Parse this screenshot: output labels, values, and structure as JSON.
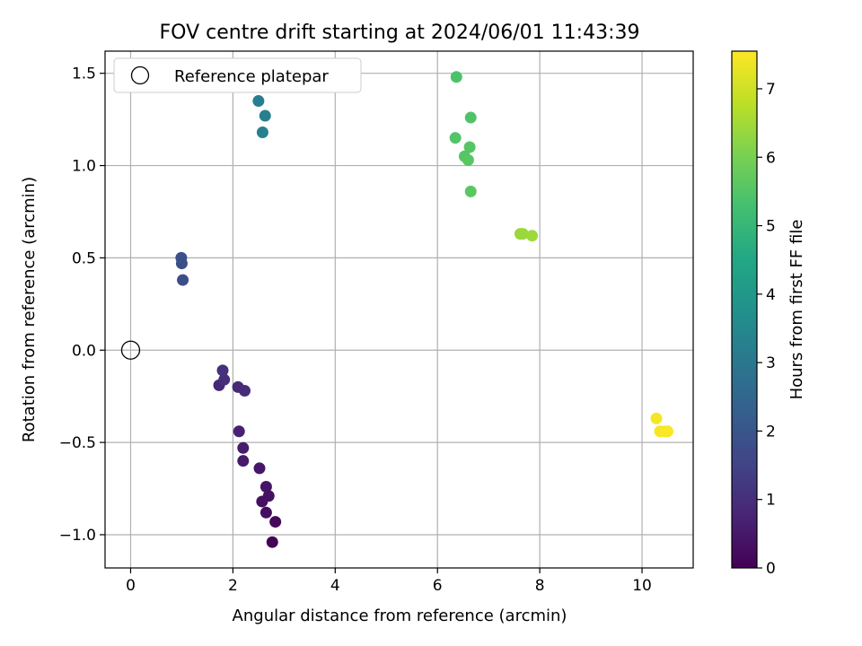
{
  "chart_data": {
    "type": "scatter",
    "title": "FOV centre drift starting at 2024/06/01 11:43:39",
    "xlabel": "Angular distance from reference (arcmin)",
    "ylabel": "Rotation from reference (arcmin)",
    "xlim": [
      -0.5,
      11.0
    ],
    "ylim": [
      -1.18,
      1.62
    ],
    "xticks": [
      0,
      2,
      4,
      6,
      8,
      10
    ],
    "xtick_labels": [
      "0",
      "2",
      "4",
      "6",
      "8",
      "10"
    ],
    "yticks": [
      -1.0,
      -0.5,
      0.0,
      0.5,
      1.0,
      1.5
    ],
    "ytick_labels": [
      "−1.0",
      "−0.5",
      "0.0",
      "0.5",
      "1.0",
      "1.5"
    ],
    "grid": true,
    "legend": {
      "placement": "top-left",
      "entries": [
        "Reference platepar"
      ]
    },
    "reference_point": {
      "x": 0.0,
      "y": 0.0
    },
    "colorbar": {
      "label": "Hours from first FF file",
      "range": [
        0.0,
        7.55
      ],
      "ticks": [
        0,
        1,
        2,
        3,
        4,
        5,
        6,
        7
      ],
      "tick_labels": [
        "0",
        "1",
        "2",
        "3",
        "4",
        "5",
        "6",
        "7"
      ],
      "colormap": "viridis"
    },
    "points": [
      {
        "x": 2.77,
        "y": -1.04,
        "hours": 0.05
      },
      {
        "x": 2.83,
        "y": -0.93,
        "hours": 0.15
      },
      {
        "x": 2.65,
        "y": -0.88,
        "hours": 0.25
      },
      {
        "x": 2.57,
        "y": -0.82,
        "hours": 0.3
      },
      {
        "x": 2.7,
        "y": -0.79,
        "hours": 0.35
      },
      {
        "x": 2.65,
        "y": -0.74,
        "hours": 0.4
      },
      {
        "x": 2.52,
        "y": -0.64,
        "hours": 0.45
      },
      {
        "x": 2.2,
        "y": -0.6,
        "hours": 0.55
      },
      {
        "x": 2.2,
        "y": -0.53,
        "hours": 0.6
      },
      {
        "x": 2.12,
        "y": -0.44,
        "hours": 0.7
      },
      {
        "x": 1.73,
        "y": -0.19,
        "hours": 0.85
      },
      {
        "x": 2.1,
        "y": -0.2,
        "hours": 0.9
      },
      {
        "x": 2.23,
        "y": -0.22,
        "hours": 0.95
      },
      {
        "x": 1.83,
        "y": -0.16,
        "hours": 1.0
      },
      {
        "x": 1.8,
        "y": -0.11,
        "hours": 1.05
      },
      {
        "x": 1.02,
        "y": 0.38,
        "hours": 1.75
      },
      {
        "x": 1.0,
        "y": 0.47,
        "hours": 1.8
      },
      {
        "x": 0.99,
        "y": 0.5,
        "hours": 1.85
      },
      {
        "x": 2.58,
        "y": 1.18,
        "hours": 3.3
      },
      {
        "x": 2.63,
        "y": 1.27,
        "hours": 3.25
      },
      {
        "x": 2.5,
        "y": 1.35,
        "hours": 3.2
      },
      {
        "x": 6.37,
        "y": 1.48,
        "hours": 5.4
      },
      {
        "x": 6.65,
        "y": 1.26,
        "hours": 5.45
      },
      {
        "x": 6.35,
        "y": 1.15,
        "hours": 5.5
      },
      {
        "x": 6.63,
        "y": 1.1,
        "hours": 5.52
      },
      {
        "x": 6.53,
        "y": 1.05,
        "hours": 5.55
      },
      {
        "x": 6.6,
        "y": 1.03,
        "hours": 5.57
      },
      {
        "x": 6.65,
        "y": 0.86,
        "hours": 5.6
      },
      {
        "x": 7.62,
        "y": 0.63,
        "hours": 6.35
      },
      {
        "x": 7.67,
        "y": 0.63,
        "hours": 6.4
      },
      {
        "x": 7.85,
        "y": 0.62,
        "hours": 6.45
      },
      {
        "x": 10.28,
        "y": -0.37,
        "hours": 7.45
      },
      {
        "x": 10.35,
        "y": -0.44,
        "hours": 7.48
      },
      {
        "x": 10.45,
        "y": -0.44,
        "hours": 7.5
      },
      {
        "x": 10.5,
        "y": -0.44,
        "hours": 7.52
      }
    ]
  }
}
